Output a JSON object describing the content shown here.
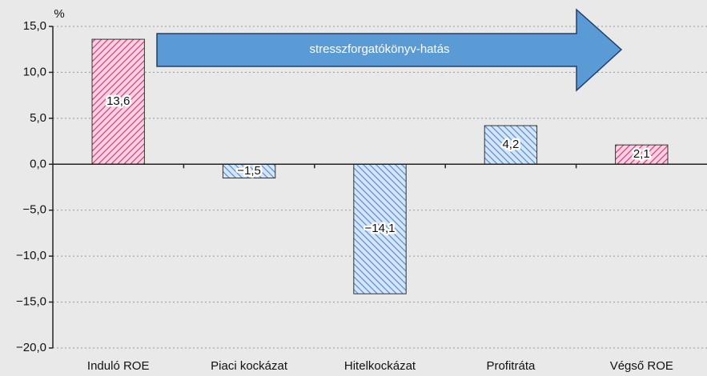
{
  "chart_data": {
    "type": "bar",
    "unit_label": "%",
    "annotation": "stresszforgatókönyv-hatás",
    "categories": [
      "Induló ROE",
      "Piaci kockázat",
      "Hitelkockázat",
      "Profitráta",
      "Végső ROE"
    ],
    "values": [
      13.6,
      -1.5,
      -14.1,
      4.2,
      2.1
    ],
    "value_labels": [
      "13,6",
      "−1,5",
      "−14,1",
      "4,2",
      "2,1"
    ],
    "colors": [
      "#e6337a",
      "#5b8fc7",
      "#5b8fc7",
      "#5b8fc7",
      "#e6337a"
    ],
    "ylim": [
      -20,
      15
    ],
    "yticks": [
      {
        "value": -20,
        "label": "−20,0"
      },
      {
        "value": -15,
        "label": "−15,0"
      },
      {
        "value": -10,
        "label": "−10,0"
      },
      {
        "value": -5,
        "label": "−5,0"
      },
      {
        "value": 0,
        "label": "0,0"
      },
      {
        "value": 5,
        "label": "5,0"
      },
      {
        "value": 10,
        "label": "10,0"
      },
      {
        "value": 15,
        "label": "15,0"
      }
    ],
    "grid": true
  }
}
